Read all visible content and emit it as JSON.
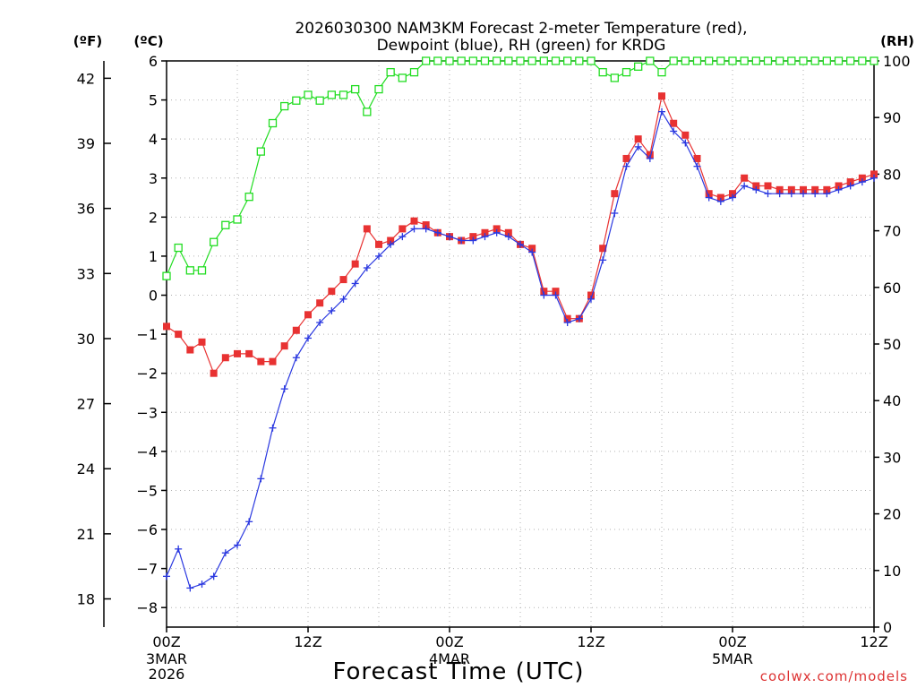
{
  "chart_data": {
    "type": "line",
    "title_line1": "2026030300 NAM3KM Forecast 2-meter Temperature (red),",
    "title_line2": "Dewpoint (blue), RH (green) for KRDG",
    "xlabel": "Forecast Time (UTC)",
    "credit": "coolwx.com/models",
    "colors": {
      "temperature": "#e83232",
      "dewpoint": "#2a38e0",
      "rh": "#22dd22",
      "credit": "#dd3333"
    },
    "axes": {
      "left_f": {
        "unit_label": "(ºF)",
        "ticks": [
          18,
          21,
          24,
          27,
          30,
          33,
          36,
          39,
          42
        ]
      },
      "left_c": {
        "unit_label": "(ºC)",
        "range": [
          -8.5,
          6
        ],
        "ticks": [
          -8,
          -7,
          -6,
          -5,
          -4,
          -3,
          -2,
          -1,
          0,
          1,
          2,
          3,
          4,
          5,
          6
        ]
      },
      "right_rh": {
        "unit_label": "(RH)",
        "range": [
          0,
          100
        ],
        "ticks": [
          0,
          10,
          20,
          30,
          40,
          50,
          60,
          70,
          80,
          90,
          100
        ]
      },
      "x": {
        "range_hours": [
          0,
          60
        ],
        "ticks": [
          {
            "hour": 0,
            "label": "00Z",
            "sub": [
              "3MAR",
              "2026"
            ]
          },
          {
            "hour": 12,
            "label": "12Z",
            "sub": []
          },
          {
            "hour": 24,
            "label": "00Z",
            "sub": [
              "4MAR"
            ]
          },
          {
            "hour": 36,
            "label": "12Z",
            "sub": []
          },
          {
            "hour": 48,
            "label": "00Z",
            "sub": [
              "5MAR"
            ]
          },
          {
            "hour": 60,
            "label": "12Z",
            "sub": []
          }
        ]
      }
    },
    "x_hours": [
      0,
      1,
      2,
      3,
      4,
      5,
      6,
      7,
      8,
      9,
      10,
      11,
      12,
      13,
      14,
      15,
      16,
      17,
      18,
      19,
      20,
      21,
      22,
      23,
      24,
      25,
      26,
      27,
      28,
      29,
      30,
      31,
      32,
      33,
      34,
      35,
      36,
      37,
      38,
      39,
      40,
      41,
      42,
      43,
      44,
      45,
      46,
      47,
      48,
      49,
      50,
      51,
      52,
      53,
      54,
      55,
      56,
      57,
      58,
      59,
      60
    ],
    "series": [
      {
        "name": "Temperature (°C)",
        "key": "temperature",
        "marker": "filled-square",
        "values": [
          -0.8,
          -1.0,
          -1.4,
          -1.2,
          -2.0,
          -1.6,
          -1.5,
          -1.5,
          -1.7,
          -1.7,
          -1.3,
          -0.9,
          -0.5,
          -0.2,
          0.1,
          0.4,
          0.8,
          1.7,
          1.3,
          1.4,
          1.7,
          1.9,
          1.8,
          1.6,
          1.5,
          1.4,
          1.5,
          1.6,
          1.7,
          1.6,
          1.3,
          1.2,
          0.1,
          0.1,
          -0.6,
          -0.6,
          0.0,
          1.2,
          2.6,
          3.5,
          4.0,
          3.6,
          5.1,
          4.4,
          4.1,
          3.5,
          2.6,
          2.5,
          2.6,
          3.0,
          2.8,
          2.8,
          2.7,
          2.7,
          2.7,
          2.7,
          2.7,
          2.8,
          2.9,
          3.0,
          3.1
        ]
      },
      {
        "name": "Dewpoint (°C)",
        "key": "dewpoint",
        "marker": "plus",
        "values": [
          -7.2,
          -6.5,
          -7.5,
          -7.4,
          -7.2,
          -6.6,
          -6.4,
          -5.8,
          -4.7,
          -3.4,
          -2.4,
          -1.6,
          -1.1,
          -0.7,
          -0.4,
          -0.1,
          0.3,
          0.7,
          1.0,
          1.3,
          1.5,
          1.7,
          1.7,
          1.6,
          1.5,
          1.4,
          1.4,
          1.5,
          1.6,
          1.5,
          1.3,
          1.1,
          0.0,
          0.0,
          -0.7,
          -0.6,
          -0.1,
          0.9,
          2.1,
          3.3,
          3.8,
          3.5,
          4.7,
          4.2,
          3.9,
          3.3,
          2.5,
          2.4,
          2.5,
          2.8,
          2.7,
          2.6,
          2.6,
          2.6,
          2.6,
          2.6,
          2.6,
          2.7,
          2.8,
          2.9,
          3.0
        ]
      },
      {
        "name": "RH (%)",
        "key": "rh",
        "marker": "open-square",
        "axis": "right",
        "values": [
          62,
          67,
          63,
          63,
          68,
          71,
          72,
          76,
          84,
          89,
          92,
          93,
          94,
          93,
          94,
          94,
          95,
          91,
          95,
          98,
          97,
          98,
          100,
          100,
          100,
          100,
          100,
          100,
          100,
          100,
          100,
          100,
          100,
          100,
          100,
          100,
          100,
          98,
          97,
          98,
          99,
          100,
          98,
          100,
          100,
          100,
          100,
          100,
          100,
          100,
          100,
          100,
          100,
          100,
          100,
          100,
          100,
          100,
          100,
          100,
          100
        ]
      }
    ]
  }
}
